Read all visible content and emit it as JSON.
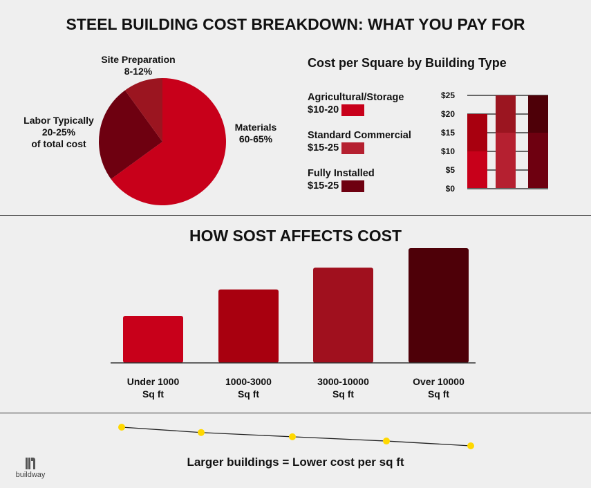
{
  "title": "STEEL BUILDING COST BREAKDOWN: WHAT YOU PAY FOR",
  "chart_data": [
    {
      "type": "pie",
      "slices": [
        {
          "label": "Materials",
          "range": "60-65%",
          "value": 65,
          "color": "#c8001a"
        },
        {
          "label": "Labor Typically",
          "range": "20-25%",
          "extra": "of total cost",
          "value": 25,
          "color": "#6e0010"
        },
        {
          "label": "Site Preparation",
          "range": "8-12%",
          "value": 10,
          "color": "#9b1520"
        }
      ]
    },
    {
      "type": "bar",
      "stacked": true,
      "title": "Cost per Square by Building Type",
      "ylim": [
        0,
        25
      ],
      "yticks": [
        "$0",
        "$5",
        "$10",
        "$15",
        "$20",
        "$25"
      ],
      "grid": true,
      "categories": [
        {
          "label": "Agricultural/Storage",
          "range": "$10-20",
          "segments": [
            {
              "from": 0,
              "to": 10,
              "color": "#c8001a"
            },
            {
              "from": 10,
              "to": 20,
              "color": "#a8000f"
            }
          ]
        },
        {
          "label": "Standard Commercial",
          "range": "$15-25",
          "segments": [
            {
              "from": 0,
              "to": 15,
              "color": "#b52030"
            },
            {
              "from": 15,
              "to": 25,
              "color": "#9b1520"
            }
          ]
        },
        {
          "label": "Fully Installed",
          "range": "$15-25",
          "segments": [
            {
              "from": 0,
              "to": 15,
              "color": "#6e0010"
            },
            {
              "from": 15,
              "to": 25,
              "color": "#4e0008"
            }
          ]
        }
      ]
    },
    {
      "type": "bar",
      "title": "HOW SOST AFFECTS COST",
      "categories": [
        [
          "Under 1000",
          "Sq ft"
        ],
        [
          "1000-3000",
          "Sq ft"
        ],
        [
          "3000-10000",
          "Sq ft"
        ],
        [
          "Over 10000",
          "Sq ft"
        ]
      ],
      "values": [
        41,
        64,
        83,
        100
      ],
      "colors": [
        "#c8001a",
        "#a8000f",
        "#a0101e",
        "#4e0008"
      ]
    },
    {
      "type": "line",
      "values": [
        5,
        4,
        3.2,
        2.4,
        1.5
      ],
      "color": "#222",
      "marker_color": "#ffd800",
      "caption": "Larger buildings = Lower cost per sq ft"
    }
  ],
  "logo": "buildway"
}
